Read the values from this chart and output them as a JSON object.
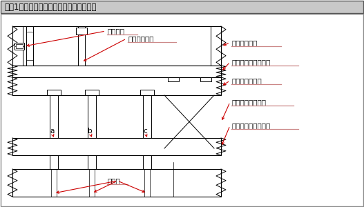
{
  "title": "『図1』組立・分解を考慮していない構造",
  "bg_color": "#ffffff",
  "title_bg": "#c0c0c0",
  "border_color": "#888888",
  "line_color": "#000000",
  "arrow_color": "#cc0000",
  "underline_color": "#cc8888",
  "labels": {
    "tomeneji": "止めねじ",
    "dauerpin": "ダウエルピン",
    "punch_holder": "パンチホルダ",
    "backing_plate": "バッキングプレート",
    "punch_plate": "パンチプレート",
    "stripper_bolt": "ストリッパボルト",
    "stripper_plate": "ストリッパプレート",
    "punch": "パンチ",
    "a": "a",
    "b": "b",
    "c": "c"
  }
}
